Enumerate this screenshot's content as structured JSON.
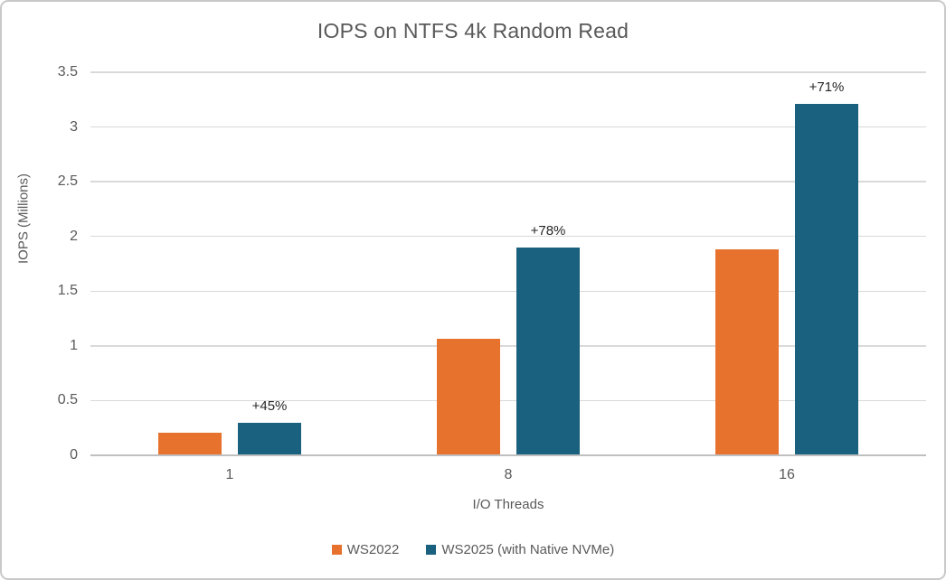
{
  "chart_data": {
    "type": "bar",
    "title": "IOPS on NTFS 4k Random Read",
    "xlabel": "I/O Threads",
    "ylabel": "IOPS (Millions)",
    "categories": [
      "1",
      "8",
      "16"
    ],
    "series": [
      {
        "name": "WS2022",
        "color": "#E7722E",
        "values": [
          0.2,
          1.06,
          1.87
        ]
      },
      {
        "name": "WS2025 (with Native NVMe)",
        "color": "#1A607F",
        "values": [
          0.29,
          1.89,
          3.2
        ],
        "labels": [
          "+45%",
          "+78%",
          "+71%"
        ]
      }
    ],
    "ylim": [
      0,
      3.5
    ],
    "y_tick_step": 0.5,
    "y_ticks": [
      "0",
      "0.5",
      "1",
      "1.5",
      "2",
      "2.5",
      "3",
      "3.5"
    ],
    "grid": true,
    "legend_position": "bottom"
  },
  "colors": {
    "background": "#FFFFFF",
    "border": "#C9C9C9",
    "title_text": "#595959",
    "axis_text": "#595959",
    "data_label_text": "#262626",
    "gridline": "#D9D9D9",
    "zero_line": "#BFBFBF"
  }
}
